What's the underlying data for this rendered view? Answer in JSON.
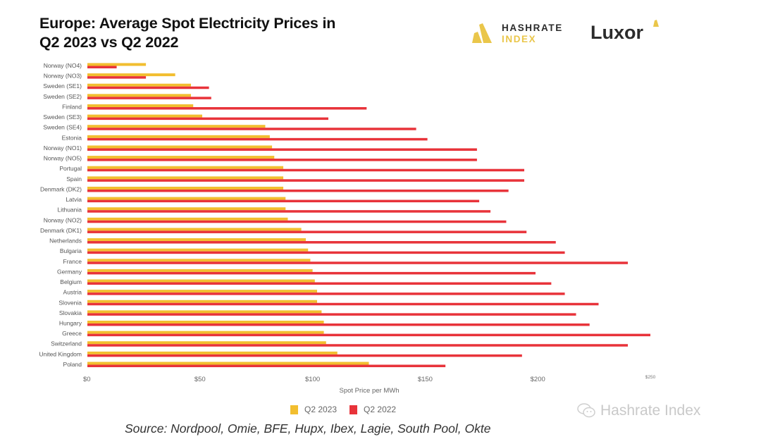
{
  "header": {
    "title_line1": "Europe: Average Spot Electricity Prices in",
    "title_line2": "Q2 2023 vs Q2 2022"
  },
  "logos": {
    "hashrate_line1": "HASHRATE",
    "hashrate_line2": "INDEX",
    "luxor": "Luxor",
    "hashrate_icon": "hashrate-index-logo-icon",
    "luxor_icon": "luxor-triangle-icon"
  },
  "colors": {
    "q2_2023": "#F2BE2F",
    "q2_2022": "#E8333A",
    "brand_yellow": "#EAC64A"
  },
  "legend": {
    "q2_2023": "Q2 2023",
    "q2_2022": "Q2 2022"
  },
  "source": "Source: Nordpool, Omie, BFE, Hupx, Ibex, Lagie, South Pool, Okte",
  "watermark": "Hashrate Index",
  "chart_data": {
    "type": "bar",
    "orientation": "horizontal",
    "title": "Europe: Average Spot Electricity Prices in Q2 2023 vs Q2 2022",
    "xlabel": "Spot Price per MWh",
    "ylabel": "",
    "xlim": [
      0,
      250
    ],
    "x_ticks": [
      "$0",
      "$50",
      "$100",
      "$150",
      "$200",
      "$250"
    ],
    "x_tick_values": [
      0,
      50,
      100,
      150,
      200,
      250
    ],
    "grid": false,
    "legend_position": "bottom-center",
    "categories": [
      "Norway (NO4)",
      "Norway (NO3)",
      "Sweden (SE1)",
      "Sweden (SE2)",
      "Finland",
      "Sweden (SE3)",
      "Sweden (SE4)",
      "Estonia",
      "Norway (NO1)",
      "Norway (NO5)",
      "Portugal",
      "Spain",
      "Denmark (DK2)",
      "Latvia",
      "Lithuania",
      "Norway (NO2)",
      "Denmark (DK1)",
      "Netherlands",
      "Bulgaria",
      "France",
      "Germany",
      "Belgium",
      "Austria",
      "Slovenia",
      "Slovakia",
      "Hungary",
      "Greece",
      "Switzerland",
      "United Kingdom",
      "Poland"
    ],
    "series": [
      {
        "name": "Q2 2023",
        "values": [
          26,
          39,
          46,
          46,
          47,
          51,
          79,
          81,
          82,
          83,
          87,
          87,
          87,
          88,
          88,
          89,
          95,
          97,
          98,
          99,
          100,
          101,
          102,
          102,
          104,
          105,
          105,
          106,
          111,
          125
        ]
      },
      {
        "name": "Q2 2022",
        "values": [
          13,
          26,
          54,
          55,
          124,
          107,
          146,
          151,
          173,
          173,
          194,
          194,
          187,
          174,
          179,
          186,
          195,
          208,
          212,
          240,
          199,
          206,
          212,
          227,
          217,
          223,
          250,
          240,
          193,
          159
        ]
      }
    ]
  }
}
